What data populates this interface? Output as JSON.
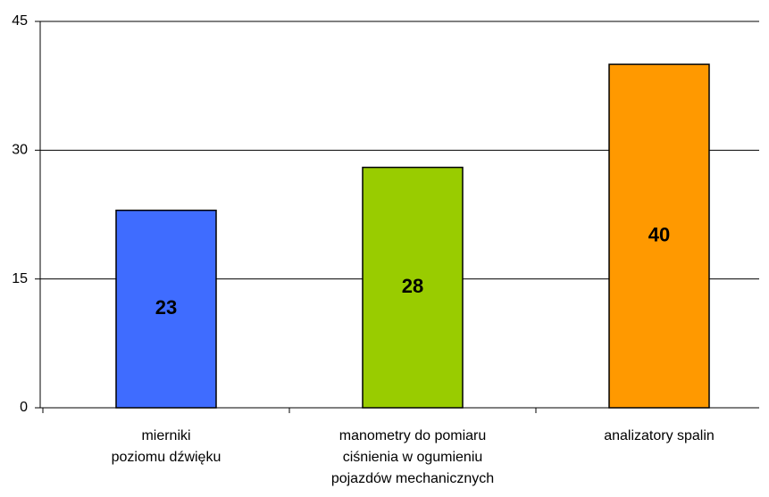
{
  "chart_data": {
    "type": "bar",
    "categories": [
      "mierniki\npoziomu dźwięku",
      "manometry do pomiaru\nciśnienia w ogumieniu\npojazdów mechanicznych",
      "analizatory spalin"
    ],
    "values": [
      23,
      28,
      40
    ],
    "colors": [
      "#3f6cff",
      "#99cc00",
      "#ff9900"
    ],
    "ylim": [
      0,
      45
    ],
    "yticks": [
      0,
      15,
      30,
      45
    ],
    "grid": true
  }
}
